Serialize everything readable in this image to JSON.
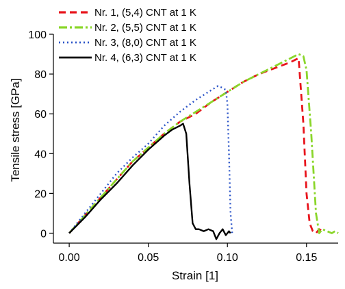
{
  "chart_data": {
    "type": "line",
    "title": "",
    "xlabel": "Strain [1]",
    "ylabel": "Tensile stress [GPa]",
    "xlim": [
      -0.01,
      0.17
    ],
    "ylim": [
      -5,
      100
    ],
    "x_ticks": [
      0.0,
      0.05,
      0.1,
      0.15
    ],
    "x_tick_labels": [
      "0.00",
      "0.05",
      "0.10",
      "0.15"
    ],
    "y_ticks": [
      0,
      20,
      40,
      60,
      80,
      100
    ],
    "y_tick_labels": [
      "0",
      "20",
      "40",
      "60",
      "80",
      "100"
    ],
    "grid": false,
    "legend_position": "top-left",
    "series": [
      {
        "name": "Nr. 1, (5,4) CNT at 1 K",
        "color": "#e8141c",
        "dash": "dashed",
        "x": [
          0.0,
          0.01,
          0.02,
          0.03,
          0.04,
          0.05,
          0.06,
          0.07,
          0.08,
          0.09,
          0.1,
          0.11,
          0.12,
          0.13,
          0.14,
          0.145,
          0.148,
          0.15,
          0.152,
          0.154,
          0.156,
          0.158,
          0.16
        ],
        "y": [
          0,
          9,
          18,
          27,
          36,
          43,
          50,
          56,
          60,
          66,
          71,
          76,
          80,
          83,
          86,
          88,
          55,
          20,
          5,
          1,
          0,
          2,
          1
        ]
      },
      {
        "name": "Nr. 2, (5,5) CNT at 1 K",
        "color": "#8ad62a",
        "dash": "dashdot",
        "x": [
          0.0,
          0.01,
          0.02,
          0.03,
          0.04,
          0.05,
          0.06,
          0.07,
          0.08,
          0.09,
          0.1,
          0.11,
          0.12,
          0.13,
          0.14,
          0.145,
          0.148,
          0.15,
          0.153,
          0.156,
          0.158,
          0.16,
          0.163,
          0.166,
          0.168,
          0.17
        ],
        "y": [
          0,
          9,
          18,
          27,
          36,
          43,
          50,
          56,
          61,
          66,
          71,
          76,
          80,
          84,
          88,
          90,
          89,
          82,
          50,
          10,
          0,
          2,
          1,
          0,
          1,
          0
        ]
      },
      {
        "name": "Nr. 3, (8,0) CNT at 1 K",
        "color": "#2b54c8",
        "dash": "dotted",
        "x": [
          0.0,
          0.01,
          0.02,
          0.03,
          0.04,
          0.05,
          0.06,
          0.07,
          0.08,
          0.09,
          0.094,
          0.097,
          0.099,
          0.1,
          0.101,
          0.102,
          0.103
        ],
        "y": [
          0,
          10,
          20,
          30,
          38,
          45,
          54,
          61,
          67,
          72,
          74,
          73,
          72,
          65,
          40,
          10,
          0
        ]
      },
      {
        "name": "Nr. 4, (6,3) CNT at 1 K",
        "color": "#000000",
        "dash": "solid",
        "x": [
          0.0,
          0.01,
          0.02,
          0.03,
          0.04,
          0.05,
          0.06,
          0.065,
          0.07,
          0.072,
          0.074,
          0.076,
          0.078,
          0.08,
          0.082,
          0.085,
          0.088,
          0.091,
          0.093,
          0.095,
          0.097,
          0.099,
          0.101,
          0.102
        ],
        "y": [
          0,
          8,
          17,
          25,
          34,
          42,
          49,
          52,
          54,
          55,
          50,
          25,
          5,
          2,
          2,
          1,
          2,
          1,
          -3,
          0,
          2,
          -1,
          1,
          0
        ]
      }
    ]
  }
}
